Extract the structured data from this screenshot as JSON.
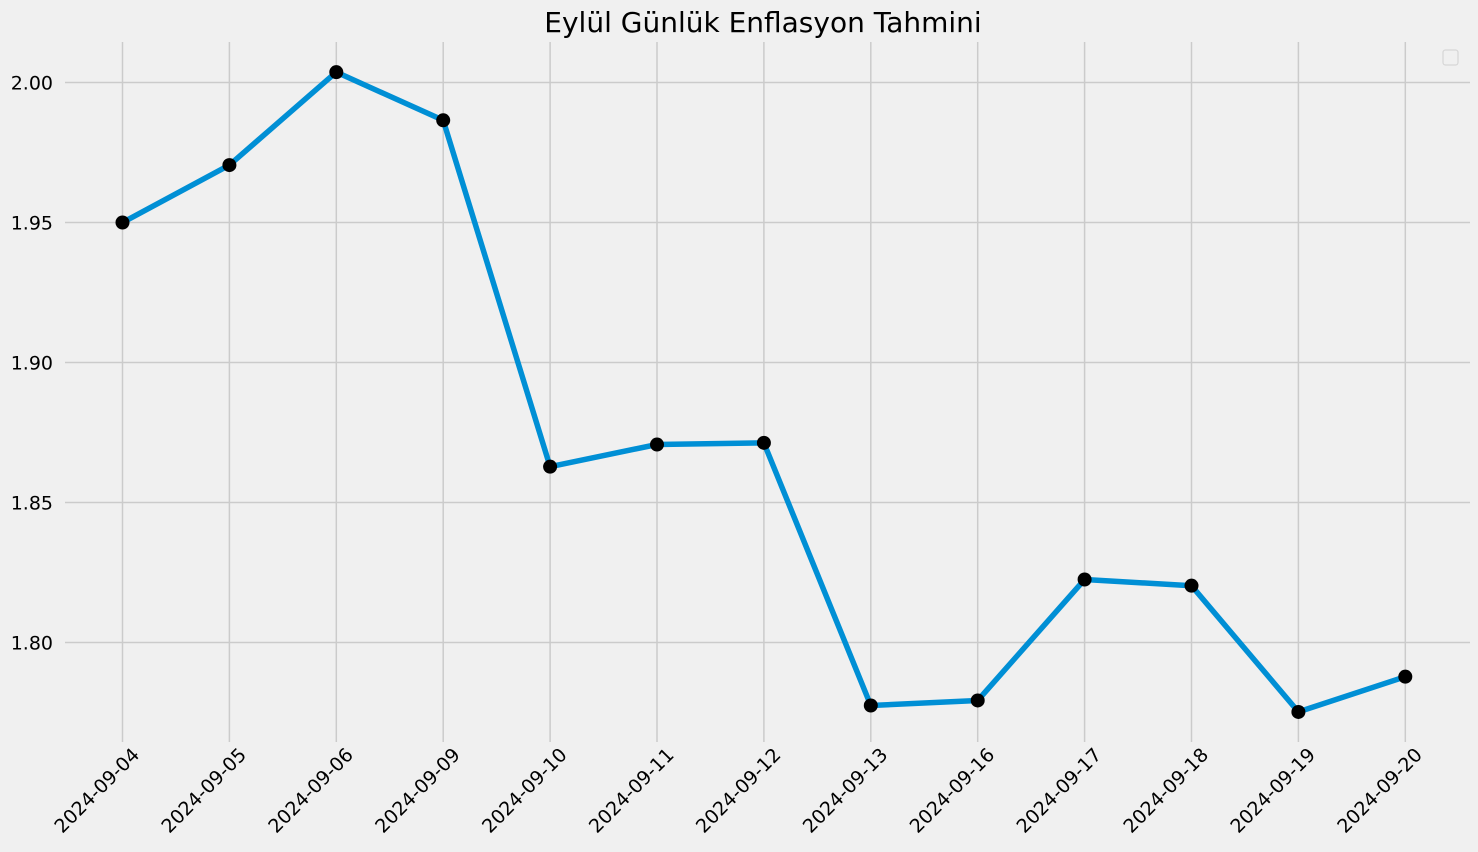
{
  "chart_data": {
    "type": "line",
    "title": "Eylül Günlük Enflasyon Tahmini",
    "xlabel": "",
    "ylabel": "",
    "categories": [
      "2024-09-04",
      "2024-09-05",
      "2024-09-06",
      "2024-09-09",
      "2024-09-10",
      "2024-09-11",
      "2024-09-12",
      "2024-09-13",
      "2024-09-16",
      "2024-09-17",
      "2024-09-18",
      "2024-09-19",
      "2024-09-20"
    ],
    "series": [
      {
        "values": [
          1.95,
          1.9705,
          2.0037,
          1.9865,
          1.8628,
          1.8707,
          1.8713,
          1.7775,
          1.7793,
          1.8225,
          1.8203,
          1.7752,
          1.7878
        ]
      }
    ],
    "yticks": [
      1.8,
      1.85,
      1.9,
      1.95,
      2.0
    ],
    "ytick_labels": [
      "1.80",
      "1.85",
      "1.90",
      "1.95",
      "2.00"
    ],
    "ylim": [
      1.7655,
      2.0145
    ],
    "grid": true,
    "legend": {
      "placement": "top-right",
      "entries": []
    },
    "colors": {
      "background": "#f0f0f0",
      "line": "#008fd5",
      "marker": "#000000",
      "grid": "#cbcbcb"
    }
  }
}
